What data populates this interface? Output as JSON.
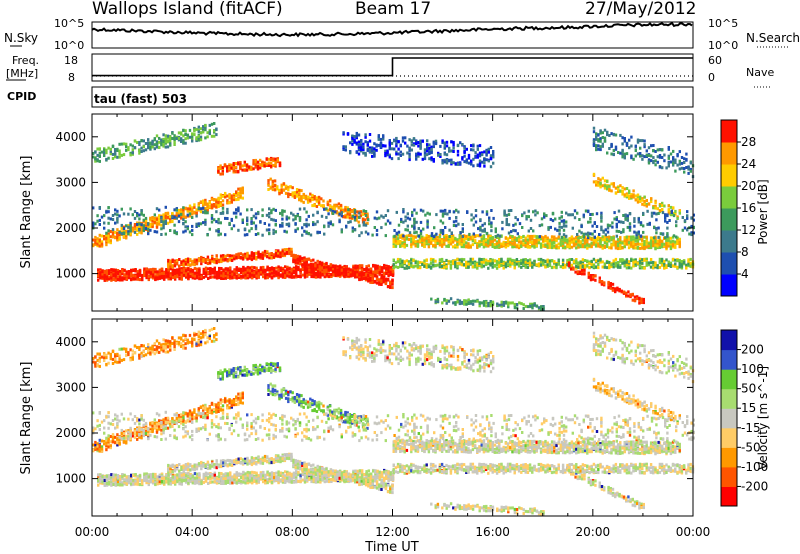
{
  "header": {
    "station": "Wallops Island (fitACF)",
    "beam": "Beam 17",
    "date": "27/May/2012"
  },
  "status_panels": {
    "nsky_label": "N.Sky",
    "nsky_ticks": [
      "10^5",
      "10^0"
    ],
    "nsearch_label": "N.Search",
    "nsearch_ticks": [
      "10^5",
      "10^0"
    ],
    "freq_label": "Freq.",
    "freq_unit": "[MHz]",
    "freq_ticks": [
      "18",
      "8"
    ],
    "nave_label": "Nave",
    "nave_ticks": [
      "60",
      "0"
    ],
    "cpid_label": "CPID",
    "cpid_value": "tau (fast) 503"
  },
  "colors": {
    "power_scale": [
      "#0000ff",
      "#1e4fb0",
      "#3c7a8c",
      "#3c9a5c",
      "#7acc3c",
      "#ffcc00",
      "#ff9900",
      "#ff5500",
      "#ff1100"
    ],
    "velocity_scale": [
      "#ff0000",
      "#ff5500",
      "#ff9900",
      "#ffcc66",
      "#c8c8c0",
      "#a8dc70",
      "#66cc33",
      "#3355cc",
      "#1111aa"
    ]
  },
  "chart_data": [
    {
      "type": "heatmap",
      "name": "power",
      "xlabel": "Time UT",
      "ylabel": "Slant Range [km]",
      "xlim": [
        "00:00",
        "24:00"
      ],
      "ylim": [
        180,
        4500
      ],
      "x_ticks": [
        "00:00",
        "04:00",
        "08:00",
        "12:00",
        "16:00",
        "20:00",
        "00:00"
      ],
      "y_ticks": [
        1000,
        2000,
        3000,
        4000
      ],
      "colorbar_label": "Power [dB]",
      "colorbar_ticks": [
        4,
        8,
        12,
        16,
        20,
        24,
        28
      ],
      "colorbar_range": [
        0,
        30
      ]
    },
    {
      "type": "heatmap",
      "name": "velocity",
      "xlabel": "Time UT",
      "ylabel": "Slant Range [km]",
      "xlim": [
        "00:00",
        "24:00"
      ],
      "ylim": [
        180,
        4500
      ],
      "x_ticks": [
        "00:00",
        "04:00",
        "08:00",
        "12:00",
        "16:00",
        "20:00",
        "00:00"
      ],
      "y_ticks": [
        1000,
        2000,
        3000,
        4000
      ],
      "colorbar_label": "Velocity [m s^-1]",
      "colorbar_ticks": [
        -200,
        -100,
        -50,
        -15,
        15,
        50,
        100,
        200
      ]
    },
    {
      "type": "line",
      "name": "frequency",
      "x_hours": [
        0,
        12,
        12,
        24
      ],
      "freq_mhz": [
        10,
        10,
        16.5,
        16.5
      ],
      "ylim": [
        8,
        18
      ]
    }
  ],
  "footer": {
    "x_axis_label": "Time UT",
    "x_ticks": [
      "00:00",
      "04:00",
      "08:00",
      "12:00",
      "16:00",
      "20:00",
      "00:00"
    ]
  }
}
